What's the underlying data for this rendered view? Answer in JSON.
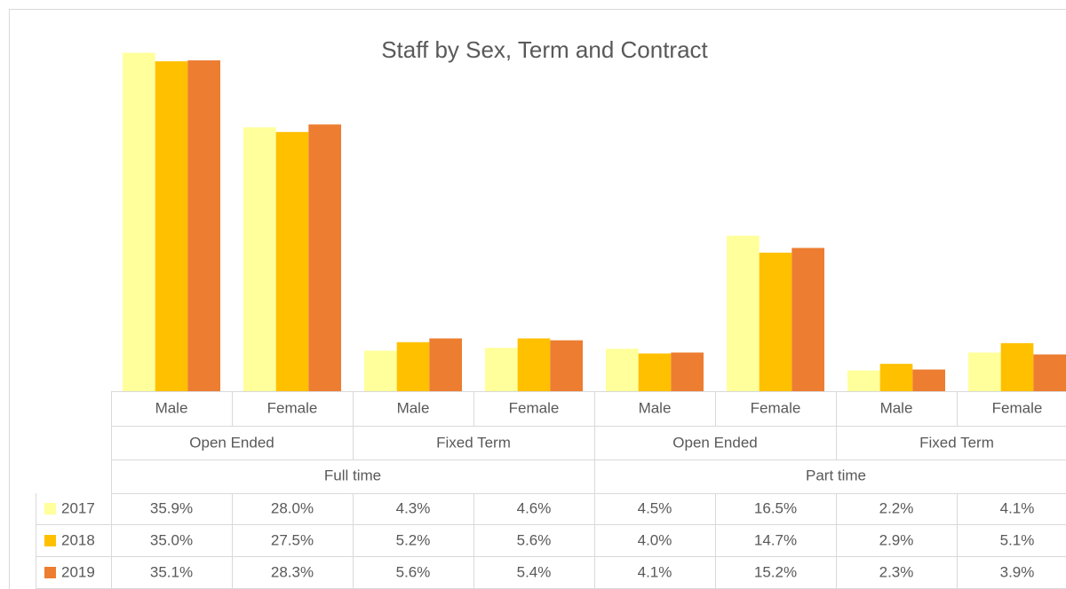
{
  "chart_data": {
    "type": "bar",
    "title": "Staff by Sex, Term and Contract",
    "categories": [
      "Male",
      "Female",
      "Male",
      "Female",
      "Male",
      "Female",
      "Male",
      "Female"
    ],
    "category_groups": [
      "Open Ended",
      "Fixed Term",
      "Open Ended",
      "Fixed Term"
    ],
    "category_supergroups": [
      "Full time",
      "Part time"
    ],
    "series": [
      {
        "name": "2017",
        "color": "#FFFF9B",
        "values": [
          35.9,
          28.0,
          4.3,
          4.6,
          4.5,
          16.5,
          2.2,
          4.1
        ],
        "value_labels": [
          "35.9%",
          "28.0%",
          "4.3%",
          "4.6%",
          "4.5%",
          "16.5%",
          "2.2%",
          "4.1%"
        ]
      },
      {
        "name": "2018",
        "color": "#FFC000",
        "values": [
          35.0,
          27.5,
          5.2,
          5.6,
          4.0,
          14.7,
          2.9,
          5.1
        ],
        "value_labels": [
          "35.0%",
          "27.5%",
          "5.2%",
          "5.6%",
          "4.0%",
          "14.7%",
          "2.9%",
          "5.1%"
        ]
      },
      {
        "name": "2019",
        "color": "#ED7D31",
        "values": [
          35.1,
          28.3,
          5.6,
          5.4,
          4.1,
          15.2,
          2.3,
          3.9
        ],
        "value_labels": [
          "35.1%",
          "28.3%",
          "5.6%",
          "5.4%",
          "4.1%",
          "15.2%",
          "2.3%",
          "3.9%"
        ]
      }
    ],
    "ylim": [
      0,
      40
    ]
  }
}
